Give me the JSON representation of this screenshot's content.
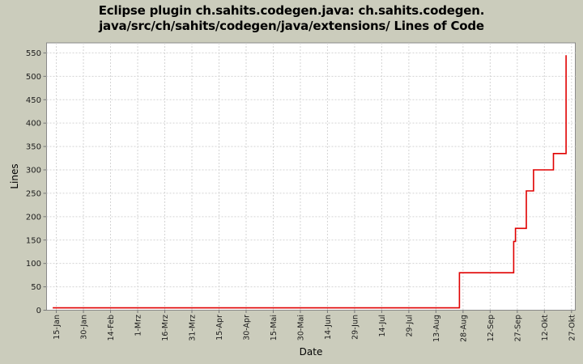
{
  "title": {
    "line1": "Eclipse plugin ch.sahits.codegen.java: ch.sahits.codegen.",
    "line2": "java/src/ch/sahits/codegen/java/extensions/ Lines of Code"
  },
  "chart_data": {
    "type": "line",
    "step": "after",
    "title": "Eclipse plugin ch.sahits.codegen.java: ch.sahits.codegen.java/src/ch/sahits/codegen/java/extensions/ Lines of Code",
    "xlabel": "Date",
    "ylabel": "Lines",
    "legend": "none",
    "grid": true,
    "x_ticks": [
      {
        "label": "15-Jan",
        "day": 15
      },
      {
        "label": "30-Jan",
        "day": 30
      },
      {
        "label": "14-Feb",
        "day": 45
      },
      {
        "label": "1-Mrz",
        "day": 60
      },
      {
        "label": "16-Mrz",
        "day": 75
      },
      {
        "label": "31-Mrz",
        "day": 90
      },
      {
        "label": "15-Apr",
        "day": 105
      },
      {
        "label": "30-Apr",
        "day": 120
      },
      {
        "label": "15-Mai",
        "day": 135
      },
      {
        "label": "30-Mai",
        "day": 150
      },
      {
        "label": "14-Jun",
        "day": 165
      },
      {
        "label": "29-Jun",
        "day": 180
      },
      {
        "label": "14-Jul",
        "day": 195
      },
      {
        "label": "29-Jul",
        "day": 210
      },
      {
        "label": "13-Aug",
        "day": 225
      },
      {
        "label": "28-Aug",
        "day": 240
      },
      {
        "label": "12-Sep",
        "day": 255
      },
      {
        "label": "27-Sep",
        "day": 270
      },
      {
        "label": "12-Okt",
        "day": 285
      },
      {
        "label": "27-Okt",
        "day": 300
      }
    ],
    "y_ticks": [
      0,
      50,
      100,
      150,
      200,
      250,
      300,
      350,
      400,
      450,
      500,
      550
    ],
    "x_domain_days": [
      9.6,
      302.1
    ],
    "y_domain": [
      0,
      571.5
    ],
    "series": [
      {
        "name": "Lines of Code",
        "points": [
          {
            "date": "13-Jan",
            "day": 13,
            "value": 5
          },
          {
            "date": "26-Aug",
            "day": 238,
            "value": 80
          },
          {
            "date": "25-Sep",
            "day": 268,
            "value": 147
          },
          {
            "date": "26-Sep",
            "day": 269,
            "value": 175
          },
          {
            "date": "2-Okt",
            "day": 275,
            "value": 255
          },
          {
            "date": "6-Okt",
            "day": 279,
            "value": 300
          },
          {
            "date": "17-Okt",
            "day": 290,
            "value": 335
          },
          {
            "date": "24-Okt",
            "day": 297,
            "value": 545
          }
        ]
      }
    ]
  },
  "colors": {
    "background": "#cbccbc",
    "plot_background": "#ffffff",
    "plot_border": "#8a8a8a",
    "gridline": "#d4d4d4",
    "tick_mark": "#777777",
    "tick_text": "#1c1c1c",
    "series_line": "#e00000"
  }
}
